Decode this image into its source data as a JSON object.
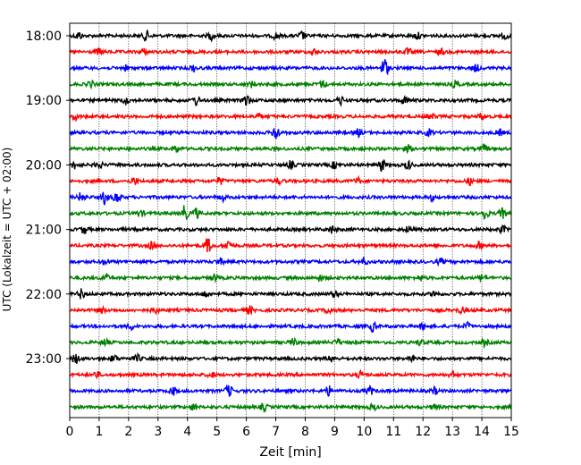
{
  "chart_data": {
    "type": "line",
    "xlabel": "Zeit  [min]",
    "ylabel": "UTC (Lokalzeit = UTC + 02:00)",
    "xlim": [
      0,
      15
    ],
    "x_ticks": [
      0,
      1,
      2,
      3,
      4,
      5,
      6,
      7,
      8,
      9,
      10,
      11,
      12,
      13,
      14,
      15
    ],
    "y_tick_labels": [
      "18:00",
      "19:00",
      "20:00",
      "21:00",
      "22:00",
      "23:00"
    ],
    "y_tick_rows": [
      0,
      4,
      8,
      12,
      16,
      20
    ],
    "rows_per_hour": 4,
    "row_minutes": 15,
    "grid": "vertical dotted",
    "colors": [
      "#000000",
      "#ff0000",
      "#0000ff",
      "#008000"
    ],
    "traces": [
      {
        "start": "18:00",
        "events": [
          [
            0.3,
            1.0
          ],
          [
            2.6,
            1.3
          ],
          [
            4.8,
            0.9
          ],
          [
            7.0,
            0.8
          ],
          [
            7.9,
            1.0
          ],
          [
            11.8,
            0.8
          ],
          [
            14.8,
            0.7
          ]
        ]
      },
      {
        "start": "18:15",
        "events": [
          [
            1.0,
            0.8
          ],
          [
            2.5,
            0.7
          ],
          [
            8.3,
            0.7
          ],
          [
            11.5,
            0.8
          ],
          [
            12.6,
            0.7
          ]
        ]
      },
      {
        "start": "18:30",
        "events": [
          [
            4.2,
            0.8
          ],
          [
            10.7,
            2.6
          ],
          [
            13.8,
            0.9
          ],
          [
            1.9,
            0.6
          ]
        ]
      },
      {
        "start": "18:45",
        "events": [
          [
            0.7,
            0.8
          ],
          [
            6.2,
            0.7
          ],
          [
            8.6,
            0.9
          ],
          [
            13.1,
            0.8
          ]
        ]
      },
      {
        "start": "19:00",
        "events": [
          [
            1.9,
            0.9
          ],
          [
            4.3,
            1.2
          ],
          [
            6.0,
            1.5
          ],
          [
            9.2,
            1.0
          ],
          [
            11.4,
            0.9
          ]
        ]
      },
      {
        "start": "19:15",
        "events": [
          [
            0.2,
            0.7
          ],
          [
            6.4,
            0.7
          ],
          [
            12.3,
            0.7
          ],
          [
            14.0,
            0.8
          ]
        ]
      },
      {
        "start": "19:30",
        "events": [
          [
            7.0,
            2.0
          ],
          [
            9.8,
            0.9
          ],
          [
            12.2,
            0.8
          ],
          [
            14.6,
            0.7
          ]
        ]
      },
      {
        "start": "19:45",
        "events": [
          [
            3.6,
            1.0
          ],
          [
            11.5,
            0.8
          ],
          [
            14.1,
            0.8
          ]
        ]
      },
      {
        "start": "20:00",
        "events": [
          [
            0.2,
            1.0
          ],
          [
            1.0,
            0.8
          ],
          [
            7.5,
            0.9
          ],
          [
            9.0,
            0.8
          ],
          [
            10.6,
            1.6
          ],
          [
            11.5,
            1.0
          ]
        ]
      },
      {
        "start": "20:15",
        "events": [
          [
            2.2,
            0.8
          ],
          [
            5.1,
            0.9
          ],
          [
            7.1,
            0.7
          ],
          [
            9.8,
            0.7
          ],
          [
            13.6,
            0.8
          ]
        ]
      },
      {
        "start": "20:30",
        "events": [
          [
            0.4,
            1.2
          ],
          [
            1.2,
            1.8
          ],
          [
            1.6,
            1.5
          ],
          [
            5.2,
            0.8
          ],
          [
            12.3,
            0.7
          ]
        ]
      },
      {
        "start": "20:45",
        "events": [
          [
            2.4,
            0.8
          ],
          [
            3.9,
            1.9
          ],
          [
            4.3,
            1.2
          ],
          [
            14.1,
            1.6
          ],
          [
            14.7,
            1.2
          ]
        ]
      },
      {
        "start": "21:00",
        "events": [
          [
            0.5,
            1.0
          ],
          [
            8.9,
            0.9
          ],
          [
            11.5,
            0.7
          ],
          [
            14.7,
            0.8
          ]
        ]
      },
      {
        "start": "21:15",
        "events": [
          [
            2.8,
            1.0
          ],
          [
            4.7,
            1.9
          ],
          [
            5.4,
            1.4
          ],
          [
            13.9,
            0.8
          ]
        ]
      },
      {
        "start": "21:30",
        "events": [
          [
            1.2,
            0.8
          ],
          [
            5.1,
            0.8
          ],
          [
            10.0,
            0.9
          ],
          [
            12.6,
            0.7
          ]
        ]
      },
      {
        "start": "21:45",
        "events": [
          [
            1.2,
            1.0
          ],
          [
            4.9,
            0.8
          ],
          [
            8.5,
            0.7
          ],
          [
            11.9,
            0.7
          ],
          [
            14.0,
            0.8
          ]
        ]
      },
      {
        "start": "22:00",
        "events": [
          [
            0.4,
            1.2
          ],
          [
            4.6,
            0.7
          ],
          [
            9.0,
            0.7
          ],
          [
            12.4,
            0.8
          ]
        ]
      },
      {
        "start": "22:15",
        "events": [
          [
            1.1,
            0.7
          ],
          [
            2.9,
            0.8
          ],
          [
            6.1,
            0.9
          ],
          [
            8.8,
            0.9
          ],
          [
            13.3,
            0.7
          ]
        ]
      },
      {
        "start": "22:30",
        "events": [
          [
            2.1,
            0.7
          ],
          [
            10.3,
            1.2
          ],
          [
            12.0,
            0.8
          ],
          [
            13.5,
            0.8
          ]
        ]
      },
      {
        "start": "22:45",
        "events": [
          [
            1.2,
            0.9
          ],
          [
            7.6,
            0.9
          ],
          [
            9.1,
            0.8
          ],
          [
            11.9,
            0.7
          ],
          [
            14.1,
            0.8
          ]
        ]
      },
      {
        "start": "23:00",
        "events": [
          [
            0.2,
            1.2
          ],
          [
            1.5,
            1.0
          ],
          [
            2.3,
            0.9
          ],
          [
            8.9,
            0.8
          ],
          [
            11.6,
            0.8
          ]
        ]
      },
      {
        "start": "23:15",
        "events": [
          [
            0.9,
            0.8
          ],
          [
            4.8,
            0.7
          ],
          [
            9.9,
            0.8
          ],
          [
            13.0,
            0.7
          ]
        ]
      },
      {
        "start": "23:30",
        "events": [
          [
            3.5,
            1.1
          ],
          [
            5.4,
            1.6
          ],
          [
            8.8,
            1.1
          ],
          [
            10.2,
            1.0
          ],
          [
            12.4,
            0.8
          ]
        ]
      },
      {
        "start": "23:45",
        "events": [
          [
            4.2,
            0.8
          ],
          [
            6.6,
            0.8
          ],
          [
            10.3,
            0.7
          ],
          [
            12.4,
            0.7
          ]
        ]
      }
    ]
  }
}
